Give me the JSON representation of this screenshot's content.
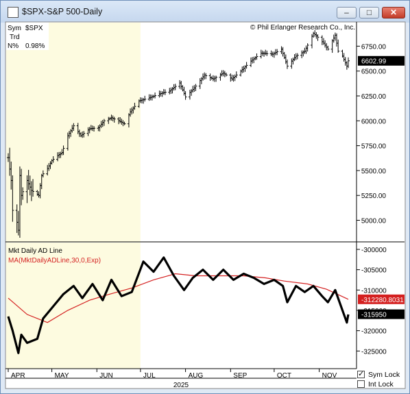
{
  "window": {
    "title": "$SPX-S&P 500-Daily",
    "buttons": {
      "minimize": "–",
      "maximize": "□",
      "close": "✕"
    }
  },
  "info": {
    "sym_label": "Sym",
    "sym_value": "$SPX",
    "trd_label": "Trd",
    "n_label": "N%",
    "n_value": "0.98%"
  },
  "copyright": "© Phil Erlanger Research Co., Inc.",
  "checkboxes": {
    "sym_lock": "Sym Lock",
    "sym_lock_checked": true,
    "int_lock": "Int Lock",
    "int_lock_checked": false
  },
  "x_axis": {
    "months": [
      "APR",
      "MAY",
      "JUN",
      "JUL",
      "AUG",
      "SEP",
      "OCT",
      "NOV"
    ],
    "year": "2025"
  },
  "colors": {
    "ma_line": "#d42020",
    "price_bars": "#000000",
    "ad_line": "#000000",
    "shade": "#fdfbe0"
  },
  "chart_data": [
    {
      "type": "ohlc",
      "title": "$SPX-S&P 500-Daily",
      "y_ticks": [
        5000,
        5250,
        5500,
        5750,
        6000,
        6250,
        6500,
        6750
      ],
      "ylim": [
        4790,
        6980
      ],
      "last_value_label": "6602.99",
      "last_value": 6602.99,
      "points": [
        {
          "x": "Apr 1",
          "v": 5630
        },
        {
          "x": "Apr 3",
          "v": 5400
        },
        {
          "x": "Apr 4",
          "v": 5100
        },
        {
          "x": "Apr 7",
          "v": 4980
        },
        {
          "x": "Apr 8",
          "v": 4900
        },
        {
          "x": "Apr 9",
          "v": 5450
        },
        {
          "x": "Apr 10",
          "v": 5250
        },
        {
          "x": "Apr 14",
          "v": 5400
        },
        {
          "x": "Apr 17",
          "v": 5300
        },
        {
          "x": "Apr 22",
          "v": 5250
        },
        {
          "x": "Apr 24",
          "v": 5450
        },
        {
          "x": "Apr 28",
          "v": 5520
        },
        {
          "x": "May 1",
          "v": 5600
        },
        {
          "x": "May 5",
          "v": 5650
        },
        {
          "x": "May 8",
          "v": 5680
        },
        {
          "x": "May 12",
          "v": 5850
        },
        {
          "x": "May 16",
          "v": 5950
        },
        {
          "x": "May 21",
          "v": 5850
        },
        {
          "x": "May 27",
          "v": 5920
        },
        {
          "x": "Jun 2",
          "v": 5930
        },
        {
          "x": "Jun 6",
          "v": 6000
        },
        {
          "x": "Jun 11",
          "v": 6030
        },
        {
          "x": "Jun 16",
          "v": 6000
        },
        {
          "x": "Jun 20",
          "v": 5970
        },
        {
          "x": "Jun 24",
          "v": 6090
        },
        {
          "x": "Jun 30",
          "v": 6200
        },
        {
          "x": "Jul 7",
          "v": 6230
        },
        {
          "x": "Jul 14",
          "v": 6270
        },
        {
          "x": "Jul 21",
          "v": 6300
        },
        {
          "x": "Jul 28",
          "v": 6380
        },
        {
          "x": "Aug 1",
          "v": 6240
        },
        {
          "x": "Aug 7",
          "v": 6330
        },
        {
          "x": "Aug 14",
          "v": 6460
        },
        {
          "x": "Aug 20",
          "v": 6420
        },
        {
          "x": "Aug 27",
          "v": 6480
        },
        {
          "x": "Sep 2",
          "v": 6420
        },
        {
          "x": "Sep 8",
          "v": 6500
        },
        {
          "x": "Sep 15",
          "v": 6600
        },
        {
          "x": "Sep 22",
          "v": 6680
        },
        {
          "x": "Sep 30",
          "v": 6670
        },
        {
          "x": "Oct 6",
          "v": 6720
        },
        {
          "x": "Oct 10",
          "v": 6550
        },
        {
          "x": "Oct 16",
          "v": 6650
        },
        {
          "x": "Oct 22",
          "v": 6700
        },
        {
          "x": "Oct 28",
          "v": 6880
        },
        {
          "x": "Oct 31",
          "v": 6840
        },
        {
          "x": "Nov 4",
          "v": 6780
        },
        {
          "x": "Nov 7",
          "v": 6720
        },
        {
          "x": "Nov 12",
          "v": 6860
        },
        {
          "x": "Nov 14",
          "v": 6700
        },
        {
          "x": "Nov 17",
          "v": 6650
        },
        {
          "x": "Nov 20",
          "v": 6550
        },
        {
          "x": "Nov 21",
          "v": 6603
        }
      ]
    },
    {
      "type": "line",
      "y_ticks": [
        -300000,
        -305000,
        -310000,
        -315000,
        -320000,
        -325000
      ],
      "ylim": [
        -329000,
        -299000
      ],
      "series": [
        {
          "name": "Mkt Daily AD Line",
          "last_value_label": "-315950",
          "points": [
            {
              "x": "Apr 1",
              "v": -316500
            },
            {
              "x": "Apr 4",
              "v": -320000
            },
            {
              "x": "Apr 8",
              "v": -325500
            },
            {
              "x": "Apr 10",
              "v": -321000
            },
            {
              "x": "Apr 14",
              "v": -323000
            },
            {
              "x": "Apr 21",
              "v": -322000
            },
            {
              "x": "Apr 25",
              "v": -317000
            },
            {
              "x": "May 2",
              "v": -314000
            },
            {
              "x": "May 9",
              "v": -311000
            },
            {
              "x": "May 16",
              "v": -309000
            },
            {
              "x": "May 22",
              "v": -312000
            },
            {
              "x": "May 29",
              "v": -308500
            },
            {
              "x": "Jun 5",
              "v": -312500
            },
            {
              "x": "Jun 11",
              "v": -307500
            },
            {
              "x": "Jun 18",
              "v": -311500
            },
            {
              "x": "Jun 25",
              "v": -310500
            },
            {
              "x": "Jul 3",
              "v": -303000
            },
            {
              "x": "Jul 10",
              "v": -305500
            },
            {
              "x": "Jul 17",
              "v": -302000
            },
            {
              "x": "Jul 24",
              "v": -306500
            },
            {
              "x": "Jul 31",
              "v": -310000
            },
            {
              "x": "Aug 6",
              "v": -307000
            },
            {
              "x": "Aug 13",
              "v": -305000
            },
            {
              "x": "Aug 20",
              "v": -307500
            },
            {
              "x": "Aug 27",
              "v": -305000
            },
            {
              "x": "Sep 3",
              "v": -307500
            },
            {
              "x": "Sep 10",
              "v": -306000
            },
            {
              "x": "Sep 17",
              "v": -307000
            },
            {
              "x": "Sep 24",
              "v": -308500
            },
            {
              "x": "Oct 1",
              "v": -307500
            },
            {
              "x": "Oct 7",
              "v": -309000
            },
            {
              "x": "Oct 10",
              "v": -313000
            },
            {
              "x": "Oct 16",
              "v": -309000
            },
            {
              "x": "Oct 22",
              "v": -310500
            },
            {
              "x": "Oct 28",
              "v": -309000
            },
            {
              "x": "Nov 3",
              "v": -311500
            },
            {
              "x": "Nov 7",
              "v": -313000
            },
            {
              "x": "Nov 12",
              "v": -310000
            },
            {
              "x": "Nov 17",
              "v": -315000
            },
            {
              "x": "Nov 20",
              "v": -318000
            },
            {
              "x": "Nov 21",
              "v": -316000
            }
          ]
        },
        {
          "name": "MA(MktDailyADLine,30,0,Exp)",
          "last_value_label": "-312280.8031",
          "points": [
            {
              "x": "Apr 1",
              "v": -312000
            },
            {
              "x": "Apr 14",
              "v": -316000
            },
            {
              "x": "Apr 28",
              "v": -318000
            },
            {
              "x": "May 12",
              "v": -315000
            },
            {
              "x": "May 27",
              "v": -312500
            },
            {
              "x": "Jun 10",
              "v": -311000
            },
            {
              "x": "Jun 25",
              "v": -309500
            },
            {
              "x": "Jul 10",
              "v": -307500
            },
            {
              "x": "Jul 25",
              "v": -306000
            },
            {
              "x": "Aug 8",
              "v": -306500
            },
            {
              "x": "Aug 25",
              "v": -306500
            },
            {
              "x": "Sep 10",
              "v": -306500
            },
            {
              "x": "Sep 25",
              "v": -307000
            },
            {
              "x": "Oct 8",
              "v": -307800
            },
            {
              "x": "Oct 24",
              "v": -308500
            },
            {
              "x": "Nov 6",
              "v": -309800
            },
            {
              "x": "Nov 21",
              "v": -312280
            }
          ]
        }
      ]
    }
  ]
}
